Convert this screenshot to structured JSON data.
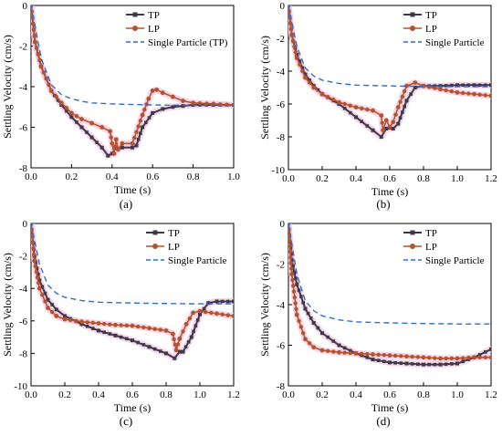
{
  "colors": {
    "tp": "#3a3a4a",
    "lp": "#b4532e",
    "single": "#2f6bd6",
    "band": "#f4c7dd"
  },
  "legend": {
    "tp": "TP",
    "lp": "LP",
    "single_a": "Single Particle (TP)",
    "single": "Single Particle"
  },
  "chart_data": [
    {
      "type": "line",
      "panel_label": "(a)",
      "xlabel": "Time (s)",
      "ylabel": "Settling Velocity (cm/s)",
      "xlim": [
        0,
        1.0
      ],
      "ylim": [
        -8,
        0
      ],
      "xticks": [
        "0.0",
        "0.2",
        "0.4",
        "0.6",
        "0.8",
        "1.0"
      ],
      "yticks": [
        "0",
        "-2",
        "-4",
        "-6",
        "-8"
      ],
      "legend_position": "top-right",
      "series": [
        {
          "name": "TP",
          "x": [
            0,
            0.02,
            0.05,
            0.1,
            0.15,
            0.2,
            0.25,
            0.3,
            0.35,
            0.38,
            0.4,
            0.42,
            0.45,
            0.5,
            0.52,
            0.55,
            0.6,
            0.65,
            0.7,
            0.75,
            0.8,
            0.9,
            1.0
          ],
          "y": [
            0,
            -1.8,
            -3.0,
            -4.2,
            -4.9,
            -5.5,
            -6.0,
            -6.5,
            -7.0,
            -7.4,
            -7.3,
            -7.0,
            -7.0,
            -7.0,
            -6.9,
            -6.0,
            -5.3,
            -5.1,
            -5.0,
            -4.95,
            -4.9,
            -4.9,
            -4.9
          ]
        },
        {
          "name": "LP",
          "x": [
            0,
            0.02,
            0.05,
            0.1,
            0.15,
            0.2,
            0.25,
            0.3,
            0.35,
            0.39,
            0.4,
            0.41,
            0.42,
            0.43,
            0.45,
            0.5,
            0.55,
            0.58,
            0.6,
            0.62,
            0.65,
            0.7,
            0.75,
            0.8,
            0.9,
            1.0
          ],
          "y": [
            0,
            -1.8,
            -3.0,
            -4.2,
            -4.8,
            -5.3,
            -5.6,
            -5.8,
            -6.0,
            -6.2,
            -6.8,
            -7.3,
            -6.6,
            -7.1,
            -6.8,
            -6.8,
            -5.4,
            -4.6,
            -4.2,
            -4.15,
            -4.3,
            -4.5,
            -4.7,
            -4.8,
            -4.85,
            -4.9
          ]
        },
        {
          "name": "Single Particle (TP)",
          "x": [
            0,
            0.05,
            0.1,
            0.15,
            0.2,
            0.25,
            0.3,
            0.4,
            0.5,
            0.6,
            0.8,
            1.0
          ],
          "y": [
            0,
            -2.6,
            -3.9,
            -4.4,
            -4.6,
            -4.72,
            -4.8,
            -4.85,
            -4.88,
            -4.9,
            -4.92,
            -4.93
          ]
        }
      ]
    },
    {
      "type": "line",
      "panel_label": "(b)",
      "xlabel": "Time (s)",
      "ylabel": "Settling Velocity (cm/s)",
      "xlim": [
        0,
        1.2
      ],
      "ylim": [
        -10,
        0
      ],
      "xticks": [
        "0.0",
        "0.2",
        "0.4",
        "0.6",
        "0.8",
        "1.0",
        "1.2"
      ],
      "yticks": [
        "0",
        "-2",
        "-4",
        "-6",
        "-8",
        "-10"
      ],
      "legend_position": "top-right",
      "series": [
        {
          "name": "TP",
          "x": [
            0,
            0.02,
            0.05,
            0.1,
            0.15,
            0.2,
            0.3,
            0.4,
            0.5,
            0.55,
            0.58,
            0.62,
            0.65,
            0.7,
            0.75,
            0.8,
            0.9,
            1.0,
            1.1,
            1.2
          ],
          "y": [
            0,
            -1.8,
            -3.0,
            -4.2,
            -4.9,
            -5.4,
            -6.0,
            -6.8,
            -7.6,
            -8.0,
            -7.5,
            -7.5,
            -7.2,
            -5.8,
            -5.0,
            -4.9,
            -4.9,
            -4.85,
            -4.85,
            -4.85
          ]
        },
        {
          "name": "LP",
          "x": [
            0,
            0.02,
            0.05,
            0.1,
            0.15,
            0.2,
            0.3,
            0.4,
            0.5,
            0.55,
            0.56,
            0.58,
            0.6,
            0.62,
            0.65,
            0.7,
            0.75,
            0.8,
            0.9,
            1.0,
            1.1,
            1.2
          ],
          "y": [
            0,
            -1.8,
            -3.2,
            -4.4,
            -5.0,
            -5.4,
            -5.9,
            -6.2,
            -6.4,
            -6.7,
            -7.6,
            -7.0,
            -7.4,
            -7.1,
            -6.2,
            -4.9,
            -4.7,
            -4.9,
            -5.1,
            -5.3,
            -5.4,
            -5.5
          ]
        },
        {
          "name": "Single Particle",
          "x": [
            0,
            0.05,
            0.1,
            0.15,
            0.2,
            0.3,
            0.4,
            0.6,
            0.8,
            1.0,
            1.2
          ],
          "y": [
            0,
            -2.5,
            -3.8,
            -4.3,
            -4.55,
            -4.75,
            -4.85,
            -4.9,
            -4.93,
            -4.95,
            -4.95
          ]
        }
      ]
    },
    {
      "type": "line",
      "panel_label": "(c)",
      "xlabel": "Time (s)",
      "ylabel": "Settling Velocity (cm/s)",
      "xlim": [
        0,
        1.2
      ],
      "ylim": [
        -10,
        0
      ],
      "xticks": [
        "0.0",
        "0.2",
        "0.4",
        "0.6",
        "0.8",
        "1.0",
        "1.2"
      ],
      "yticks": [
        "0",
        "-2",
        "-4",
        "-6",
        "-8",
        "-10"
      ],
      "legend_position": "top-right",
      "series": [
        {
          "name": "TP",
          "x": [
            0,
            0.02,
            0.05,
            0.1,
            0.15,
            0.2,
            0.3,
            0.4,
            0.5,
            0.6,
            0.7,
            0.8,
            0.85,
            0.88,
            0.9,
            0.95,
            1.0,
            1.05,
            1.1,
            1.2
          ],
          "y": [
            0,
            -2.0,
            -3.5,
            -4.7,
            -5.3,
            -5.7,
            -6.2,
            -6.6,
            -6.9,
            -7.2,
            -7.6,
            -8.0,
            -8.3,
            -7.9,
            -7.9,
            -7.0,
            -5.6,
            -4.9,
            -4.8,
            -4.8
          ]
        },
        {
          "name": "LP",
          "x": [
            0,
            0.02,
            0.05,
            0.1,
            0.15,
            0.2,
            0.3,
            0.4,
            0.5,
            0.6,
            0.7,
            0.8,
            0.84,
            0.86,
            0.88,
            0.92,
            0.96,
            1.0,
            1.1,
            1.2
          ],
          "y": [
            0,
            -2.3,
            -4.0,
            -5.2,
            -5.7,
            -5.9,
            -6.05,
            -6.15,
            -6.25,
            -6.3,
            -6.45,
            -6.6,
            -6.8,
            -7.8,
            -7.1,
            -6.2,
            -5.5,
            -5.4,
            -5.55,
            -5.7
          ]
        },
        {
          "name": "Single Particle",
          "x": [
            0,
            0.05,
            0.1,
            0.15,
            0.2,
            0.3,
            0.4,
            0.6,
            0.8,
            1.0,
            1.2
          ],
          "y": [
            0,
            -2.5,
            -3.8,
            -4.3,
            -4.55,
            -4.75,
            -4.85,
            -4.9,
            -4.93,
            -4.95,
            -4.95
          ]
        }
      ]
    },
    {
      "type": "line",
      "panel_label": "(d)",
      "xlabel": "Time (s)",
      "ylabel": "Settling Velocity (cm/s)",
      "xlim": [
        0,
        1.2
      ],
      "ylim": [
        -8,
        0
      ],
      "xticks": [
        "0.0",
        "0.2",
        "0.4",
        "0.6",
        "0.8",
        "1.0",
        "1.2"
      ],
      "yticks": [
        "0",
        "-2",
        "-4",
        "-6",
        "-8"
      ],
      "legend_position": "top-right",
      "series": [
        {
          "name": "TP",
          "x": [
            0,
            0.02,
            0.05,
            0.1,
            0.15,
            0.2,
            0.3,
            0.4,
            0.5,
            0.6,
            0.7,
            0.8,
            0.9,
            1.0,
            1.1,
            1.2
          ],
          "y": [
            0,
            -1.8,
            -3.0,
            -4.2,
            -4.9,
            -5.4,
            -6.0,
            -6.4,
            -6.7,
            -6.85,
            -6.9,
            -6.95,
            -6.95,
            -6.9,
            -6.6,
            -6.2
          ]
        },
        {
          "name": "LP",
          "x": [
            0,
            0.02,
            0.05,
            0.1,
            0.15,
            0.2,
            0.3,
            0.4,
            0.5,
            0.6,
            0.7,
            0.8,
            0.9,
            1.0,
            1.1,
            1.2
          ],
          "y": [
            0,
            -2.5,
            -4.5,
            -5.7,
            -6.1,
            -6.25,
            -6.35,
            -6.4,
            -6.45,
            -6.5,
            -6.55,
            -6.6,
            -6.65,
            -6.65,
            -6.6,
            -6.6
          ]
        },
        {
          "name": "Single Particle",
          "x": [
            0,
            0.05,
            0.1,
            0.15,
            0.2,
            0.3,
            0.4,
            0.6,
            0.8,
            1.0,
            1.2
          ],
          "y": [
            0,
            -2.5,
            -3.8,
            -4.3,
            -4.55,
            -4.75,
            -4.85,
            -4.9,
            -4.93,
            -4.95,
            -4.95
          ]
        }
      ]
    }
  ]
}
